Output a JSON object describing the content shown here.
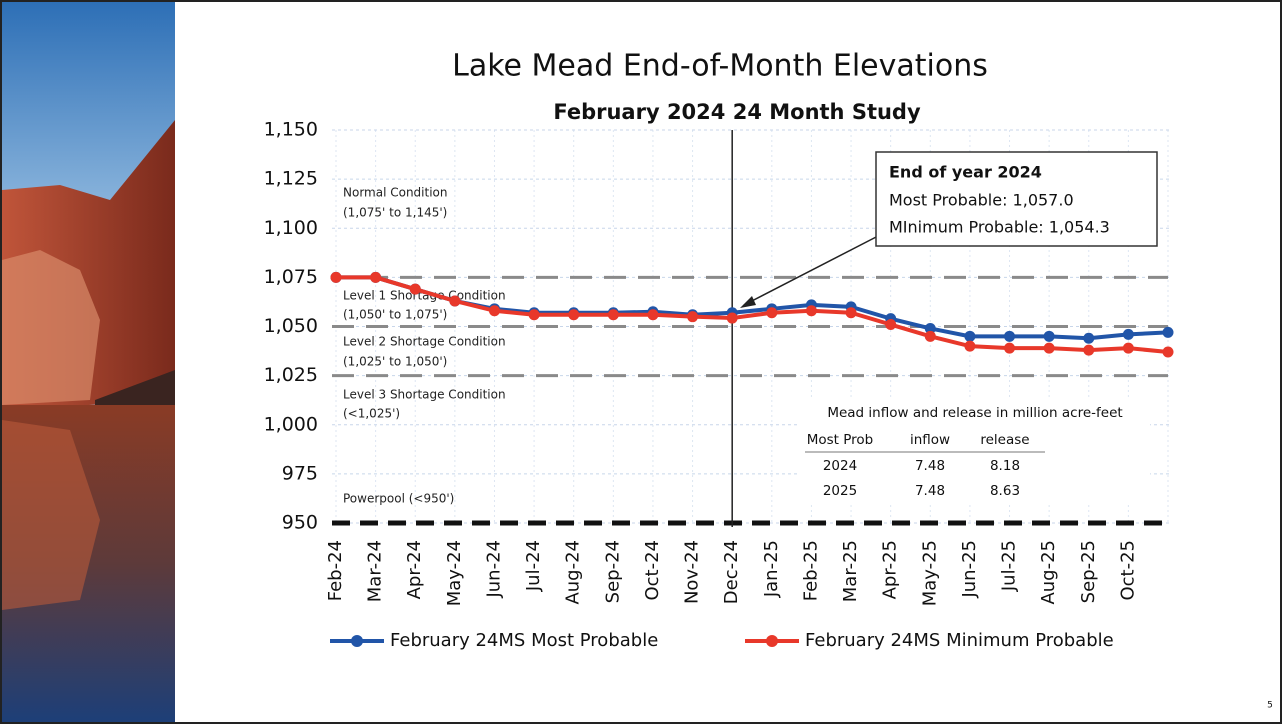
{
  "chart_data": {
    "type": "line",
    "title": "Lake Mead End-of-Month Elevations",
    "subtitle": "February 2024 24 Month Study",
    "categories": [
      "Feb-24",
      "Mar-24",
      "Apr-24",
      "May-24",
      "Jun-24",
      "Jul-24",
      "Aug-24",
      "Sep-24",
      "Oct-24",
      "Nov-24",
      "Dec-24",
      "Jan-25",
      "Feb-25",
      "Mar-25",
      "Apr-25",
      "May-25",
      "Jun-25",
      "Jul-25",
      "Aug-25",
      "Sep-25",
      "Oct-25",
      null
    ],
    "series": [
      {
        "name": "February 24MS Most Probable",
        "color": "#2155a8",
        "values": [
          1075,
          1075,
          1069,
          1063,
          1059,
          1057,
          1057,
          1057,
          1057.5,
          1056,
          1057.0,
          1059,
          1061,
          1060,
          1054,
          1049,
          1045,
          1045,
          1045,
          1044,
          1046,
          1047
        ]
      },
      {
        "name": "February 24MS Minimum Probable",
        "color": "#e8382a",
        "values": [
          1075,
          1075,
          1069,
          1063,
          1058,
          1056,
          1056,
          1056,
          1056,
          1055,
          1054.3,
          1057,
          1058,
          1057,
          1051,
          1045,
          1040,
          1039,
          1039,
          1038,
          1039,
          1037
        ]
      }
    ],
    "ylim": [
      950,
      1150
    ],
    "yticks": [
      {
        "value": 950,
        "label": "950"
      },
      {
        "value": 975,
        "label": "975"
      },
      {
        "value": 1000,
        "label": "1,000"
      },
      {
        "value": 1025,
        "label": "1,025"
      },
      {
        "value": 1050,
        "label": "1,050"
      },
      {
        "value": 1075,
        "label": "1,075"
      },
      {
        "value": 1100,
        "label": "1,100"
      },
      {
        "value": 1125,
        "label": "1,125"
      },
      {
        "value": 1150,
        "label": "1,150"
      }
    ],
    "grid": true,
    "thresholds": [
      {
        "value": 1075,
        "color": "#8a8a8a"
      },
      {
        "value": 1050,
        "color": "#8a8a8a"
      },
      {
        "value": 1025,
        "color": "#8a8a8a"
      },
      {
        "value": 950,
        "color": "#111111"
      }
    ],
    "conditions": [
      {
        "name": "Normal Condition",
        "range": "(1,075' to 1,145')"
      },
      {
        "name": "Level 1 Shortage Condition",
        "range": "(1,050' to 1,075')"
      },
      {
        "name": "Level 2 Shortage Condition",
        "range": "(1,025' to 1,050')"
      },
      {
        "name": "Level 3 Shortage Condition",
        "range": "(<1,025')"
      },
      {
        "name": "Powerpool (<950')"
      }
    ],
    "callout": {
      "title": "End of year 2024",
      "lines": [
        "Most Probable: 1,057.0",
        "MInimum Probable: 1,054.3"
      ]
    },
    "table": {
      "title": "Mead inflow and release in million acre-feet",
      "header": [
        "Most Prob",
        "inflow",
        "release"
      ],
      "rows": [
        [
          "2024",
          "7.48",
          "8.18"
        ],
        [
          "2025",
          "7.48",
          "8.63"
        ]
      ]
    }
  },
  "page_number": "5"
}
